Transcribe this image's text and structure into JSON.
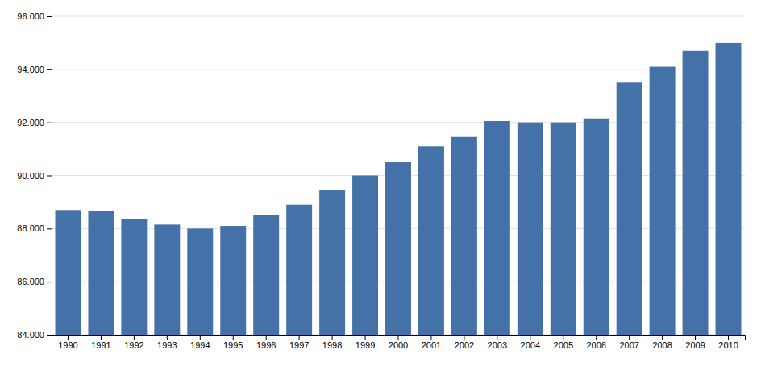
{
  "chart_data": {
    "type": "bar",
    "categories": [
      "1990",
      "1991",
      "1992",
      "1993",
      "1994",
      "1995",
      "1996",
      "1997",
      "1998",
      "1999",
      "2000",
      "2001",
      "2002",
      "2003",
      "2004",
      "2005",
      "2006",
      "2007",
      "2008",
      "2009",
      "2010"
    ],
    "values": [
      88700,
      88650,
      88350,
      88150,
      88000,
      88100,
      88500,
      88900,
      89450,
      90000,
      90500,
      91100,
      91450,
      92050,
      92000,
      92000,
      92150,
      93500,
      94100,
      94700,
      95000
    ],
    "color": "#4472a8",
    "ylim": [
      84000,
      96000
    ],
    "yticks": [
      {
        "value": 84000,
        "label": "84.000"
      },
      {
        "value": 86000,
        "label": "86.000"
      },
      {
        "value": 88000,
        "label": "88.000"
      },
      {
        "value": 90000,
        "label": "90.000"
      },
      {
        "value": 92000,
        "label": "92.000"
      },
      {
        "value": 94000,
        "label": "94.000"
      },
      {
        "value": 96000,
        "label": "96.000"
      }
    ],
    "grid": true
  }
}
